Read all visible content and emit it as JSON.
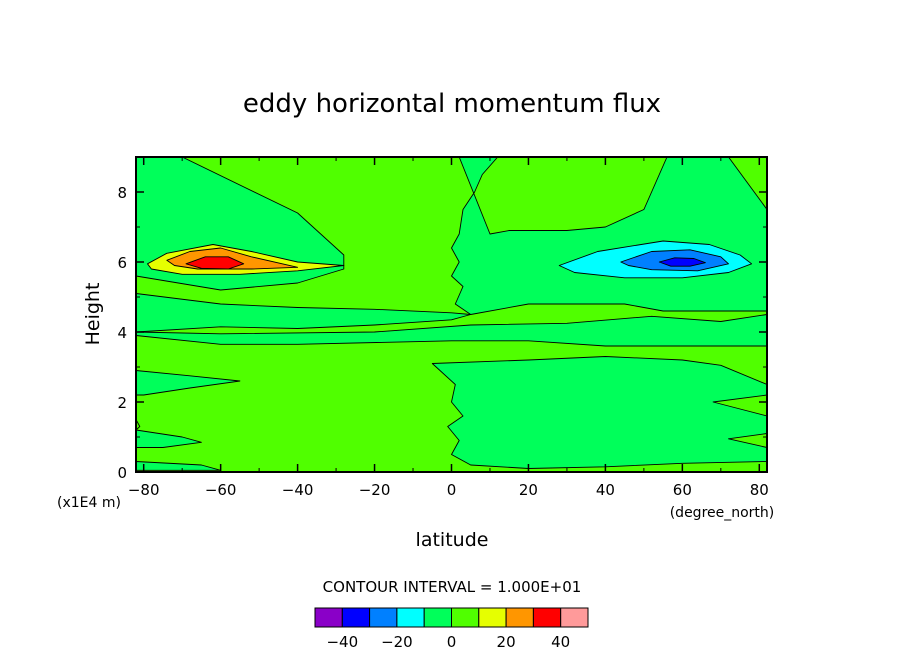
{
  "chart_data": {
    "type": "contour",
    "title": "eddy horizontal momentum flux",
    "xlabel": "latitude",
    "x_unit": "(degree_north)",
    "ylabel": "Height",
    "y_unit": "(x1E4 m)",
    "xlim": [
      -82,
      82
    ],
    "ylim": [
      0,
      9
    ],
    "x_ticks": [
      -80,
      -60,
      -40,
      -20,
      0,
      20,
      40,
      60,
      80
    ],
    "y_ticks": [
      0,
      2,
      4,
      6,
      8
    ],
    "contour_interval_text": "CONTOUR INTERVAL = 1.000E+01",
    "contour_interval": 10,
    "color_levels": [
      {
        "from": -50,
        "to": -40,
        "color": "#8a00c8"
      },
      {
        "from": -40,
        "to": -30,
        "color": "#0000ff"
      },
      {
        "from": -30,
        "to": -20,
        "color": "#0080ff"
      },
      {
        "from": -20,
        "to": -10,
        "color": "#00ffff"
      },
      {
        "from": -10,
        "to": 0,
        "color": "#00ff5a"
      },
      {
        "from": 0,
        "to": 10,
        "color": "#50ff00"
      },
      {
        "from": 10,
        "to": 20,
        "color": "#e6ff00"
      },
      {
        "from": 20,
        "to": 30,
        "color": "#ff9600"
      },
      {
        "from": 30,
        "to": 40,
        "color": "#ff0000"
      },
      {
        "from": 40,
        "to": 50,
        "color": "#ff9a9a"
      }
    ],
    "colorbar_labels": [
      -40,
      -20,
      0,
      20,
      40
    ],
    "regions": [
      {
        "level": "-10 to 0",
        "color": "#00ff5a",
        "polygon": [
          [
            -82,
            9
          ],
          [
            -70,
            9
          ],
          [
            -40,
            7.4
          ],
          [
            -28,
            6.2
          ],
          [
            -28,
            5.8
          ],
          [
            -40,
            5.4
          ],
          [
            -60,
            5.2
          ],
          [
            -82,
            5.6
          ]
        ]
      },
      {
        "level": "-10 to 0",
        "color": "#00ff5a",
        "polygon": [
          [
            2,
            9
          ],
          [
            12,
            9
          ],
          [
            8,
            8.5
          ],
          [
            6,
            8
          ],
          [
            3,
            7.5
          ],
          [
            2,
            6.8
          ],
          [
            0,
            6.4
          ],
          [
            2,
            6
          ],
          [
            0,
            5.6
          ],
          [
            3,
            5.3
          ],
          [
            1,
            4.8
          ],
          [
            5,
            4.5
          ],
          [
            20,
            4.8
          ],
          [
            45,
            4.8
          ],
          [
            55,
            4.6
          ],
          [
            62,
            4.6
          ],
          [
            82,
            4.6
          ],
          [
            82,
            7.5
          ],
          [
            72,
            9
          ],
          [
            56,
            9
          ],
          [
            50,
            7.5
          ],
          [
            40,
            7
          ],
          [
            30,
            6.9
          ],
          [
            15,
            6.9
          ],
          [
            10,
            6.8
          ]
        ]
      },
      {
        "level": "-10 to 0",
        "color": "#00ff5a",
        "polygon": [
          [
            -82,
            5.1
          ],
          [
            -60,
            4.8
          ],
          [
            -40,
            4.7
          ],
          [
            -20,
            4.65
          ],
          [
            0,
            4.55
          ],
          [
            5,
            4.5
          ],
          [
            0,
            4.35
          ],
          [
            -20,
            4.2
          ],
          [
            -40,
            4.1
          ],
          [
            -60,
            4.15
          ],
          [
            -82,
            4.0
          ]
        ]
      },
      {
        "level": "-10 to 0",
        "color": "#00ff5a",
        "polygon": [
          [
            -82,
            3.9
          ],
          [
            -60,
            3.65
          ],
          [
            -40,
            3.65
          ],
          [
            0,
            3.75
          ],
          [
            20,
            3.75
          ],
          [
            40,
            3.6
          ],
          [
            82,
            3.6
          ],
          [
            82,
            4.5
          ],
          [
            70,
            4.3
          ],
          [
            52,
            4.45
          ],
          [
            30,
            4.25
          ],
          [
            5,
            4.2
          ],
          [
            -20,
            4.0
          ],
          [
            -60,
            3.95
          ],
          [
            -82,
            4.0
          ]
        ]
      },
      {
        "level": "-10 to 0",
        "color": "#00ff5a",
        "polygon": [
          [
            -5,
            3.1
          ],
          [
            20,
            3.2
          ],
          [
            40,
            3.3
          ],
          [
            60,
            3.2
          ],
          [
            70,
            3.05
          ],
          [
            82,
            2.5
          ],
          [
            82,
            0.3
          ],
          [
            60,
            0.25
          ],
          [
            40,
            0.15
          ],
          [
            20,
            0.1
          ],
          [
            5,
            0.2
          ],
          [
            0,
            0.5
          ],
          [
            2,
            0.9
          ],
          [
            -1,
            1.3
          ],
          [
            3,
            1.6
          ],
          [
            0,
            2
          ],
          [
            1,
            2.5
          ]
        ]
      },
      {
        "level": "-10 to 0",
        "color": "#00ff5a",
        "polygon": [
          [
            -82,
            2.9
          ],
          [
            -68,
            2.75
          ],
          [
            -55,
            2.6
          ],
          [
            -68,
            2.4
          ],
          [
            -80,
            2.2
          ],
          [
            -82,
            2.2
          ]
        ]
      },
      {
        "level": "-10 to 0",
        "color": "#00ff5a",
        "polygon": [
          [
            -82,
            1.2
          ],
          [
            -70,
            1.0
          ],
          [
            -65,
            0.85
          ],
          [
            -75,
            0.7
          ],
          [
            -82,
            0.7
          ]
        ]
      },
      {
        "level": "-10 to 0",
        "color": "#00ff5a",
        "polygon": [
          [
            -82,
            0.3
          ],
          [
            -65,
            0.2
          ],
          [
            -60,
            0.05
          ],
          [
            -82,
            0.05
          ]
        ]
      },
      {
        "level": "0 to 10",
        "color": "#50ff00",
        "polygon": [
          [
            -83,
            1.7
          ],
          [
            -82,
            1.5
          ],
          [
            -81,
            1.3
          ],
          [
            -83,
            1.1
          ]
        ]
      },
      {
        "level": "0 to 10",
        "color": "#50ff00",
        "polygon": [
          [
            82,
            2.2
          ],
          [
            68,
            2
          ],
          [
            75,
            1.8
          ],
          [
            82,
            1.6
          ]
        ]
      },
      {
        "level": "0 to 10",
        "color": "#50ff00",
        "polygon": [
          [
            82,
            1.1
          ],
          [
            72,
            0.95
          ],
          [
            82,
            0.7
          ]
        ]
      },
      {
        "level": "10 to 20",
        "color": "#e6ff00",
        "polygon": [
          [
            -79,
            5.95
          ],
          [
            -74,
            6.25
          ],
          [
            -62,
            6.5
          ],
          [
            -52,
            6.3
          ],
          [
            -40,
            6.0
          ],
          [
            -28,
            5.9
          ],
          [
            -40,
            5.75
          ],
          [
            -55,
            5.65
          ],
          [
            -70,
            5.65
          ],
          [
            -78,
            5.8
          ]
        ]
      },
      {
        "level": "20 to 30",
        "color": "#ff9600",
        "polygon": [
          [
            -74,
            6.05
          ],
          [
            -68,
            6.3
          ],
          [
            -60,
            6.4
          ],
          [
            -52,
            6.15
          ],
          [
            -40,
            5.85
          ],
          [
            -52,
            5.8
          ],
          [
            -66,
            5.8
          ],
          [
            -72,
            5.9
          ]
        ]
      },
      {
        "level": "30 to 40",
        "color": "#ff0000",
        "polygon": [
          [
            -69,
            5.95
          ],
          [
            -64,
            6.15
          ],
          [
            -58,
            6.15
          ],
          [
            -54,
            5.95
          ],
          [
            -58,
            5.8
          ],
          [
            -65,
            5.82
          ]
        ]
      },
      {
        "level": "-20 to -10",
        "color": "#00ffff",
        "polygon": [
          [
            28,
            5.9
          ],
          [
            38,
            6.3
          ],
          [
            55,
            6.6
          ],
          [
            67,
            6.5
          ],
          [
            75,
            6.2
          ],
          [
            78,
            5.95
          ],
          [
            72,
            5.7
          ],
          [
            60,
            5.55
          ],
          [
            45,
            5.55
          ],
          [
            32,
            5.7
          ]
        ]
      },
      {
        "level": "-30 to -20",
        "color": "#0080ff",
        "polygon": [
          [
            44,
            6.0
          ],
          [
            52,
            6.3
          ],
          [
            62,
            6.35
          ],
          [
            70,
            6.15
          ],
          [
            72,
            5.95
          ],
          [
            64,
            5.75
          ],
          [
            52,
            5.78
          ],
          [
            46,
            5.9
          ]
        ]
      },
      {
        "level": "-40 to -30",
        "color": "#0000ff",
        "polygon": [
          [
            54,
            6.0
          ],
          [
            58,
            6.12
          ],
          [
            63,
            6.1
          ],
          [
            66,
            5.98
          ],
          [
            62,
            5.88
          ],
          [
            57,
            5.88
          ]
        ]
      }
    ]
  }
}
